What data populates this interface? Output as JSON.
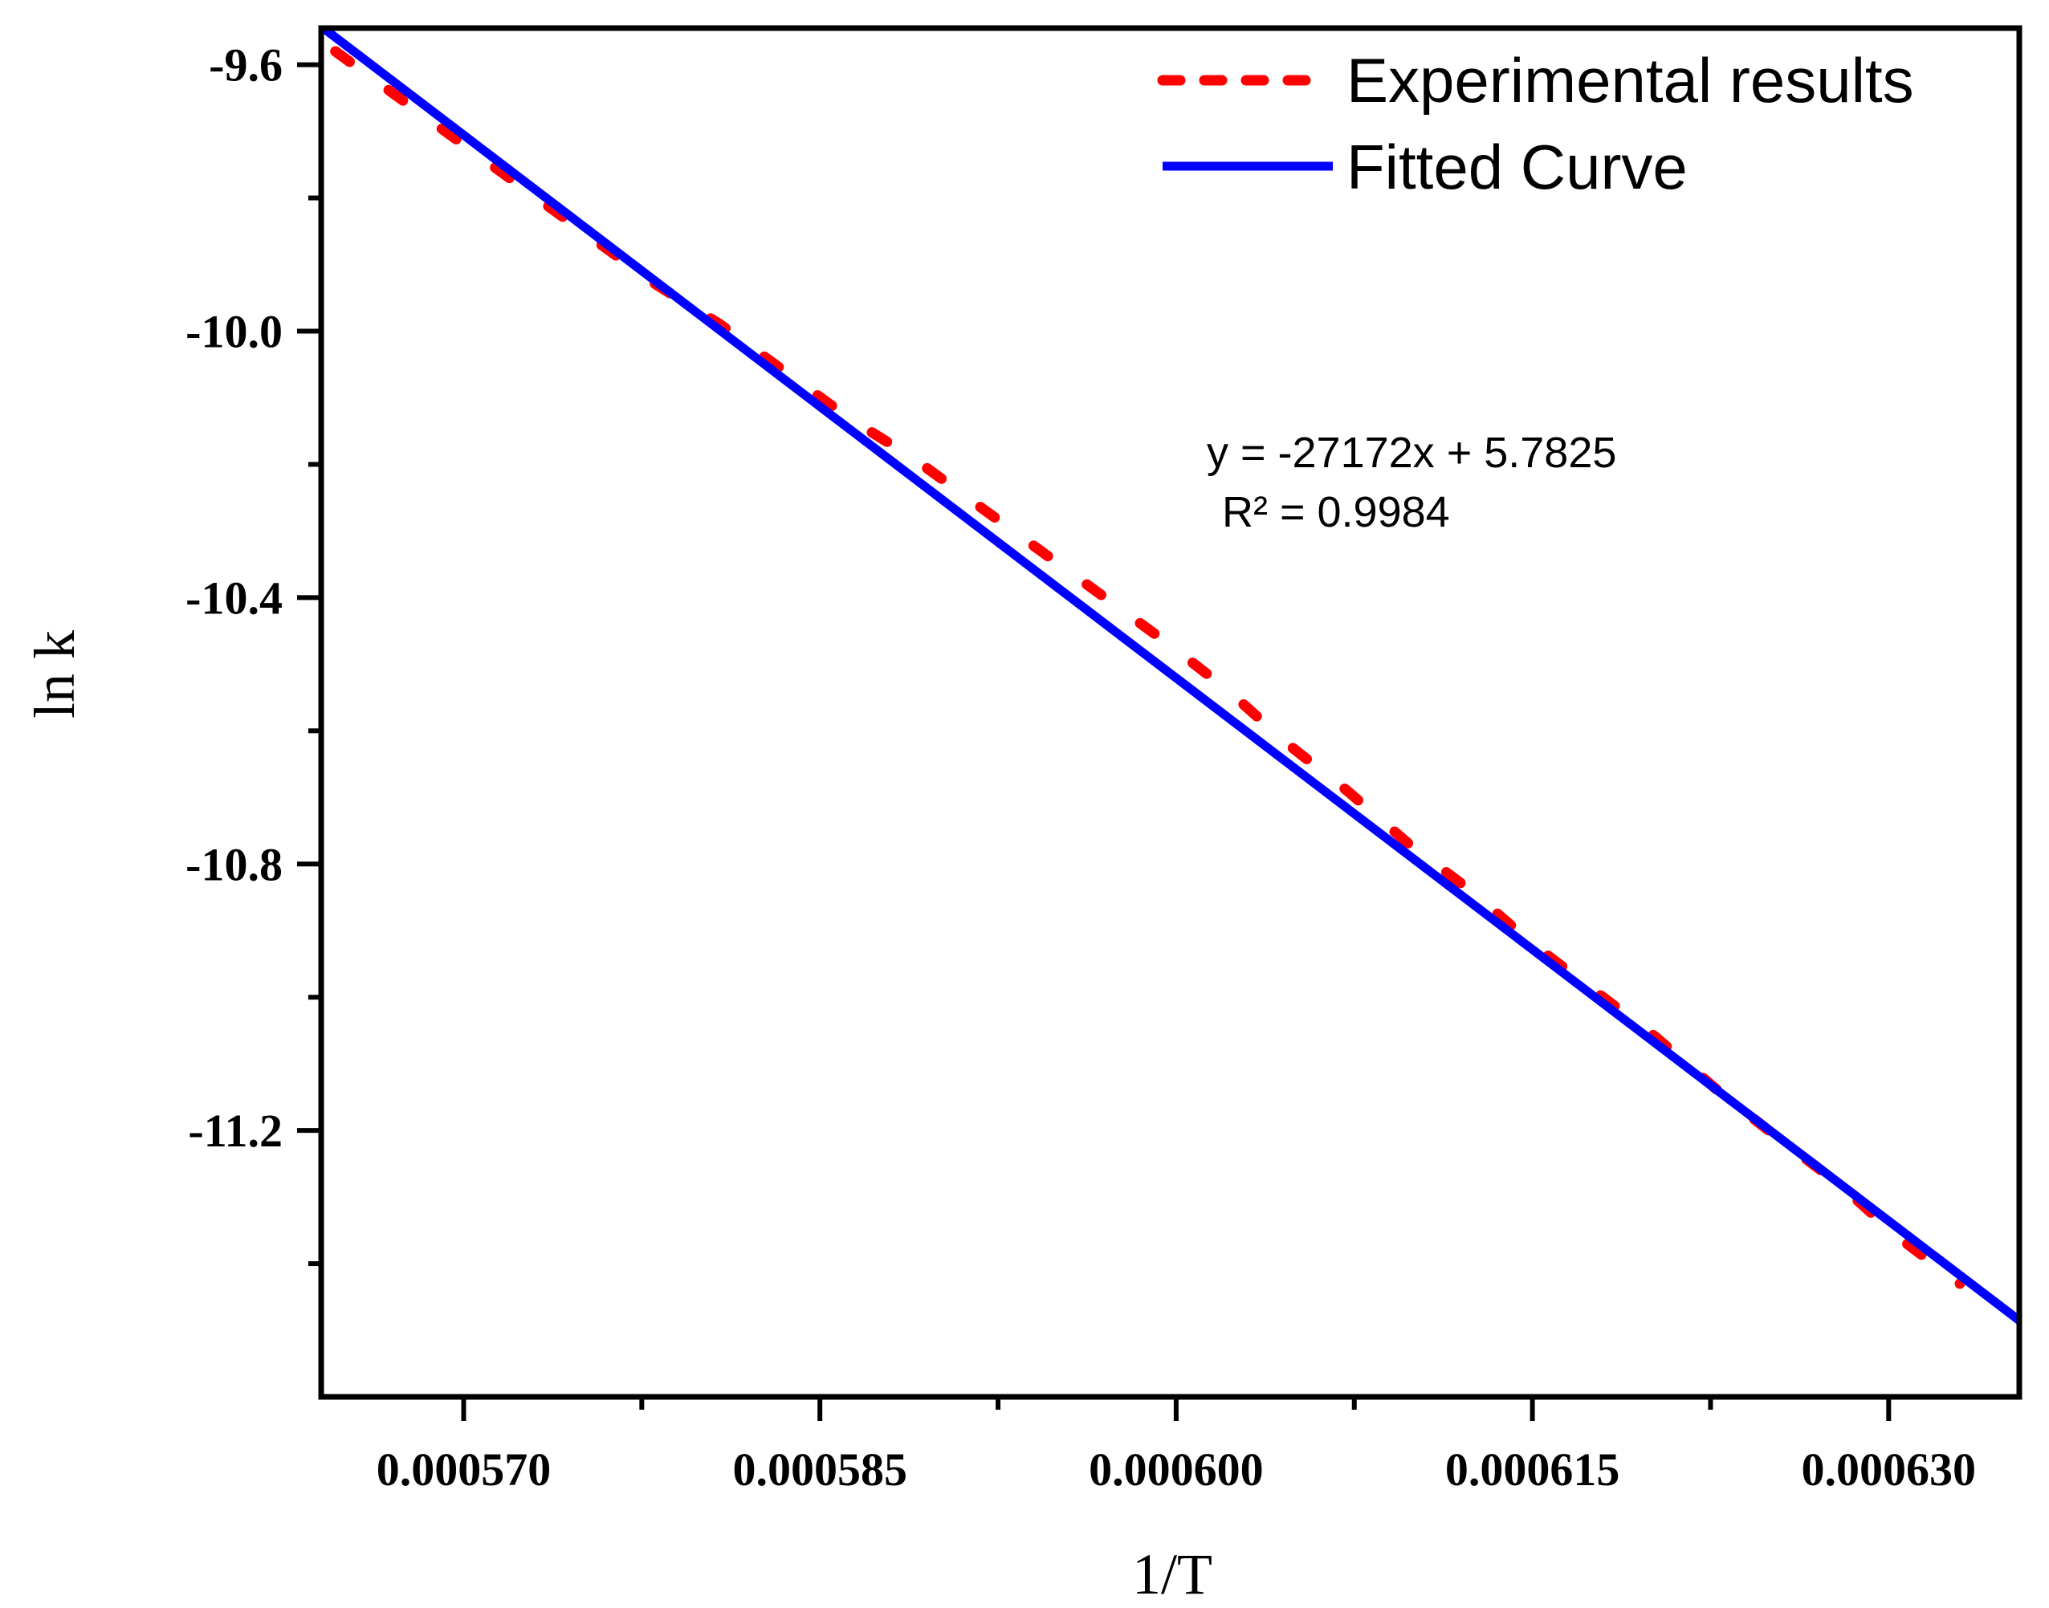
{
  "chart_data": {
    "type": "line",
    "xlabel": "1/T",
    "ylabel": "ln k",
    "xlim": [
      0.000564,
      0.0006355
    ],
    "ylim": [
      -11.6,
      -9.545
    ],
    "x_ticks": [
      0.00057,
      0.000585,
      0.0006,
      0.000615,
      0.00063
    ],
    "x_tick_labels": [
      "0.000570",
      "0.000585",
      "0.000600",
      "0.000615",
      "0.000630"
    ],
    "x_minor_ticks": [
      0.0005775,
      0.0005925,
      0.0006075,
      0.0006225
    ],
    "y_ticks": [
      -9.6,
      -10.0,
      -10.4,
      -10.8,
      -11.2
    ],
    "y_tick_labels": [
      "-9.6",
      "-10.0",
      "-10.4",
      "-10.8",
      "-11.2"
    ],
    "y_minor_ticks": [
      -9.8,
      -10.2,
      -10.6,
      -11.0,
      -11.4
    ],
    "series": [
      {
        "name": "Experimental results",
        "style": "dotted",
        "color": "#ff0000",
        "x": [
          0.0005646,
          0.0005673,
          0.00057,
          0.0005727,
          0.0005754,
          0.0005781,
          0.0005808,
          0.0005835,
          0.0005862,
          0.0005889,
          0.0005916,
          0.0005943,
          0.000597,
          0.0005997,
          0.0006022,
          0.0006047,
          0.0006072,
          0.0006098,
          0.0006124,
          0.000615,
          0.0006176,
          0.0006202,
          0.0006228,
          0.0006253,
          0.0006279,
          0.0006304,
          0.000633
        ],
        "y": [
          -9.58,
          -9.65,
          -9.72,
          -9.79,
          -9.86,
          -9.93,
          -9.99,
          -10.06,
          -10.13,
          -10.19,
          -10.26,
          -10.33,
          -10.4,
          -10.47,
          -10.54,
          -10.62,
          -10.69,
          -10.77,
          -10.84,
          -10.92,
          -10.99,
          -11.06,
          -11.14,
          -11.21,
          -11.28,
          -11.36,
          -11.43
        ]
      },
      {
        "name": "Fitted Curve",
        "style": "solid",
        "color": "#0000ff",
        "slope": -27172,
        "intercept": 5.7825,
        "x": [
          0.000564,
          0.0006355
        ]
      }
    ],
    "annotation": {
      "equation": "y = -27172x + 5.7825",
      "r_squared": "R² = 0.9984"
    },
    "legend_position": "top-right"
  }
}
